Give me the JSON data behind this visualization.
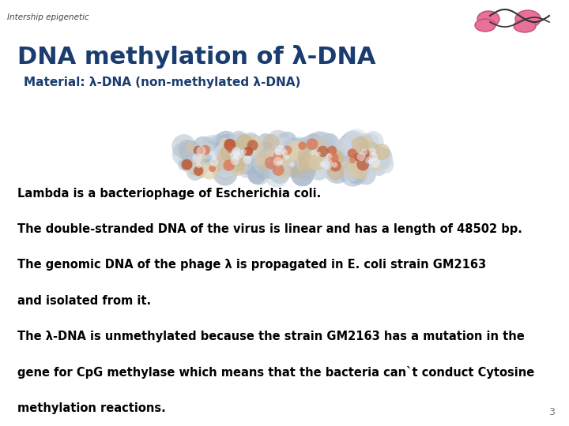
{
  "background_color": "#ffffff",
  "header_line_color": "#000000",
  "header_text": "Intership epigenetic",
  "header_fontsize": 7.5,
  "title": "DNA methylation of λ-DNA",
  "title_color": "#1a3c6e",
  "title_fontsize": 22,
  "subtitle": "Material: λ-DNA (non-methylated λ-DNA)",
  "subtitle_color": "#1a3c6e",
  "subtitle_fontsize": 11,
  "body_lines": [
    "Lambda is a bacteriophage of Escherichia coli.",
    "",
    "The double-stranded DNA of the virus is linear and has a length of 48502 bp.",
    "",
    "The genomic DNA of the phage λ is propagated in E. coli strain GM2163",
    "",
    "and isolated from it.",
    "",
    "The λ-DNA is unmethylated because the strain GM2163 has a mutation in the",
    "",
    "gene for CpG methylase which means that the bacteria can`t conduct Cytosine",
    "",
    "methylation reactions."
  ],
  "body_fontsize": 10.5,
  "body_color": "#000000",
  "page_number": "3",
  "page_number_color": "#777777",
  "page_number_fontsize": 9
}
